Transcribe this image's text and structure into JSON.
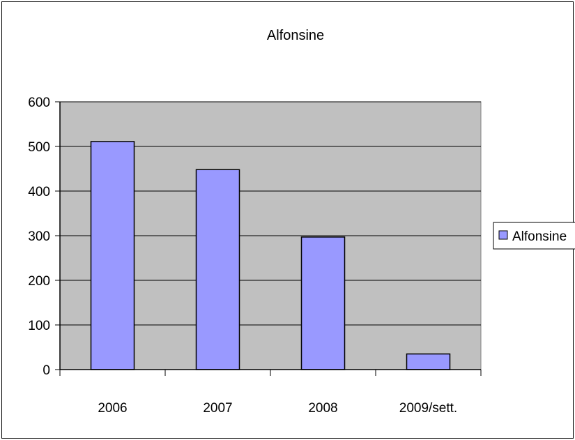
{
  "chart_data": {
    "type": "bar",
    "title": "Alfonsine",
    "categories": [
      "2006",
      "2007",
      "2008",
      "2009/sett."
    ],
    "series": [
      {
        "name": "Alfonsine",
        "values": [
          511,
          448,
          297,
          35
        ],
        "color": "#9999ff"
      }
    ],
    "ylim": [
      0,
      600
    ],
    "yticks": [
      0,
      100,
      200,
      300,
      400,
      500,
      600
    ],
    "xlabel": "",
    "ylabel": "",
    "grid": true,
    "legend_position": "right",
    "plot_background": "#c0c0c0"
  }
}
